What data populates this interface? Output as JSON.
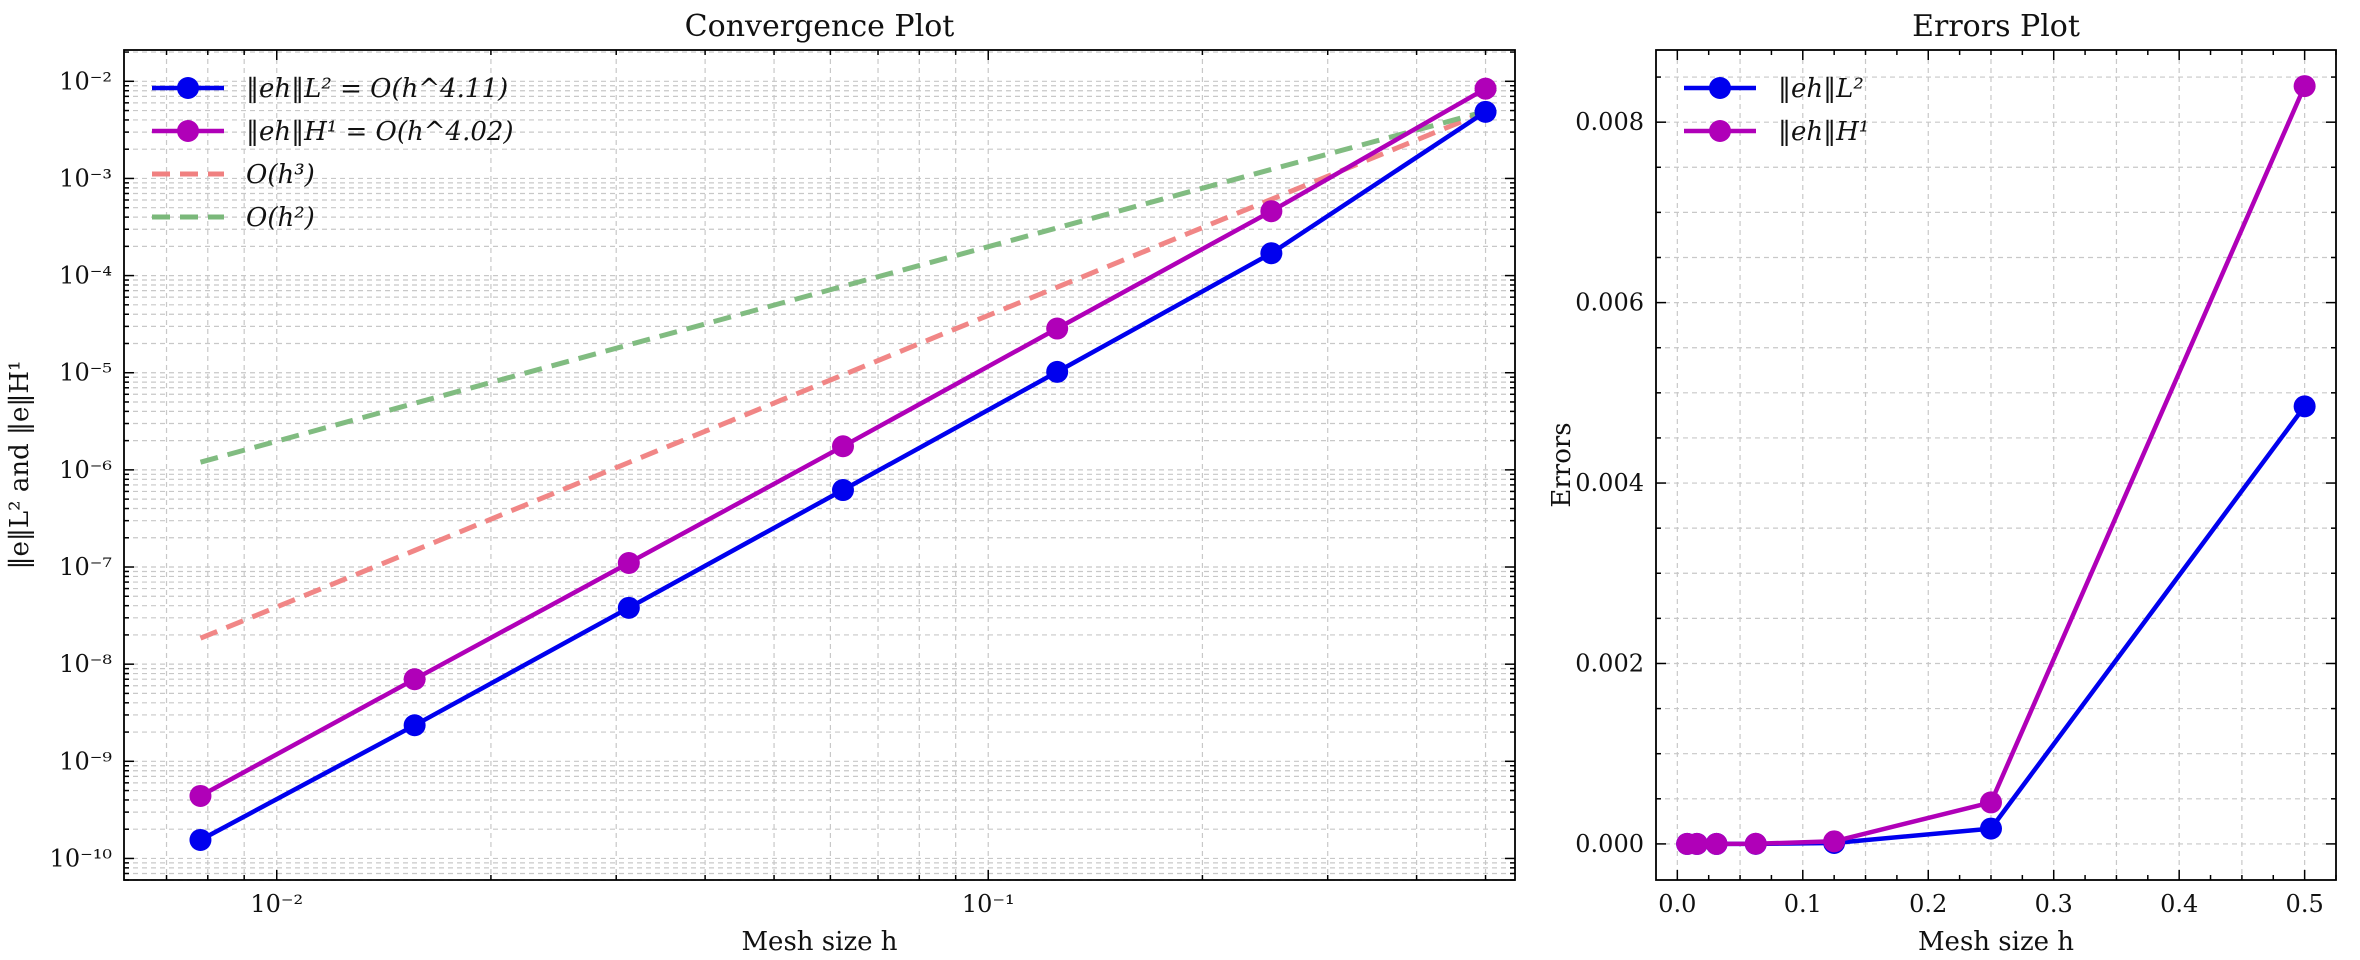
{
  "chart_data": [
    {
      "type": "line",
      "title": "Convergence Plot",
      "xlabel": "Mesh size h",
      "ylabel": "‖e‖L² and ‖e‖H¹",
      "xscale": "log",
      "yscale": "log",
      "xlim": [
        0.0061,
        0.55
      ],
      "ylim": [
        6e-11,
        0.021
      ],
      "grid": true,
      "legend_position": "top-left",
      "x_ticks": [
        {
          "value": 0.01,
          "label": "10⁻²"
        },
        {
          "value": 0.1,
          "label": "10⁻¹"
        }
      ],
      "y_ticks": [
        {
          "value": 1e-10,
          "label": "10⁻¹⁰"
        },
        {
          "value": 1e-09,
          "label": "10⁻⁹"
        },
        {
          "value": 1e-08,
          "label": "10⁻⁸"
        },
        {
          "value": 1e-07,
          "label": "10⁻⁷"
        },
        {
          "value": 1e-06,
          "label": "10⁻⁶"
        },
        {
          "value": 1e-05,
          "label": "10⁻⁵"
        },
        {
          "value": 0.0001,
          "label": "10⁻⁴"
        },
        {
          "value": 0.001,
          "label": "10⁻³"
        },
        {
          "value": 0.01,
          "label": "10⁻²"
        }
      ],
      "x": [
        0.0078125,
        0.015625,
        0.03125,
        0.0625,
        0.125,
        0.25,
        0.5
      ],
      "series": [
        {
          "name": "‖eh‖L² = O(h^4.11)",
          "color": "#0000ee",
          "style": "solid",
          "marker": "circle",
          "values": [
            1.55e-10,
            2.35e-09,
            3.8e-08,
            6.2e-07,
            1.02e-05,
            0.00017,
            0.00485
          ]
        },
        {
          "name": "‖eh‖H¹ = O(h^4.02)",
          "color": "#b000b8",
          "style": "solid",
          "marker": "circle",
          "values": [
            4.4e-10,
            7e-09,
            1.1e-07,
            1.75e-06,
            2.85e-05,
            0.00046,
            0.0084
          ]
        },
        {
          "name": "O(h³)",
          "color": "#f08080",
          "style": "dashed",
          "marker": "none",
          "values": [
            1.85e-08,
            1.48e-07,
            1.19e-06,
            9.5e-06,
            7.6e-05,
            0.00061,
            0.00485
          ]
        },
        {
          "name": "O(h²)",
          "color": "#7ab87a",
          "style": "dashed",
          "marker": "none",
          "values": [
            1.2e-06,
            4.85e-06,
            1.94e-05,
            7.75e-05,
            0.00031,
            0.00124,
            0.0049
          ]
        }
      ]
    },
    {
      "type": "line",
      "title": "Errors Plot",
      "xlabel": "Mesh size h",
      "ylabel": "Errors",
      "xscale": "linear",
      "yscale": "linear",
      "xlim": [
        -0.017,
        0.525
      ],
      "ylim": [
        -0.0004,
        0.0088
      ],
      "grid": true,
      "legend_position": "top-left",
      "x_ticks": [
        {
          "value": 0.0,
          "label": "0.0"
        },
        {
          "value": 0.1,
          "label": "0.1"
        },
        {
          "value": 0.2,
          "label": "0.2"
        },
        {
          "value": 0.3,
          "label": "0.3"
        },
        {
          "value": 0.4,
          "label": "0.4"
        },
        {
          "value": 0.5,
          "label": "0.5"
        }
      ],
      "y_ticks": [
        {
          "value": 0.0,
          "label": "0.000"
        },
        {
          "value": 0.002,
          "label": "0.002"
        },
        {
          "value": 0.004,
          "label": "0.004"
        },
        {
          "value": 0.006,
          "label": "0.006"
        },
        {
          "value": 0.008,
          "label": "0.008"
        }
      ],
      "x": [
        0.0078125,
        0.015625,
        0.03125,
        0.0625,
        0.125,
        0.25,
        0.5
      ],
      "series": [
        {
          "name": "‖eh‖L²",
          "color": "#0000ee",
          "style": "solid",
          "marker": "circle",
          "values": [
            1.55e-10,
            2.35e-09,
            3.8e-08,
            6.2e-07,
            1.02e-05,
            0.00017,
            0.00485
          ]
        },
        {
          "name": "‖eh‖H¹",
          "color": "#b000b8",
          "style": "solid",
          "marker": "circle",
          "values": [
            4.4e-10,
            7e-09,
            1.1e-07,
            1.75e-06,
            2.85e-05,
            0.00046,
            0.0084
          ]
        }
      ]
    }
  ]
}
